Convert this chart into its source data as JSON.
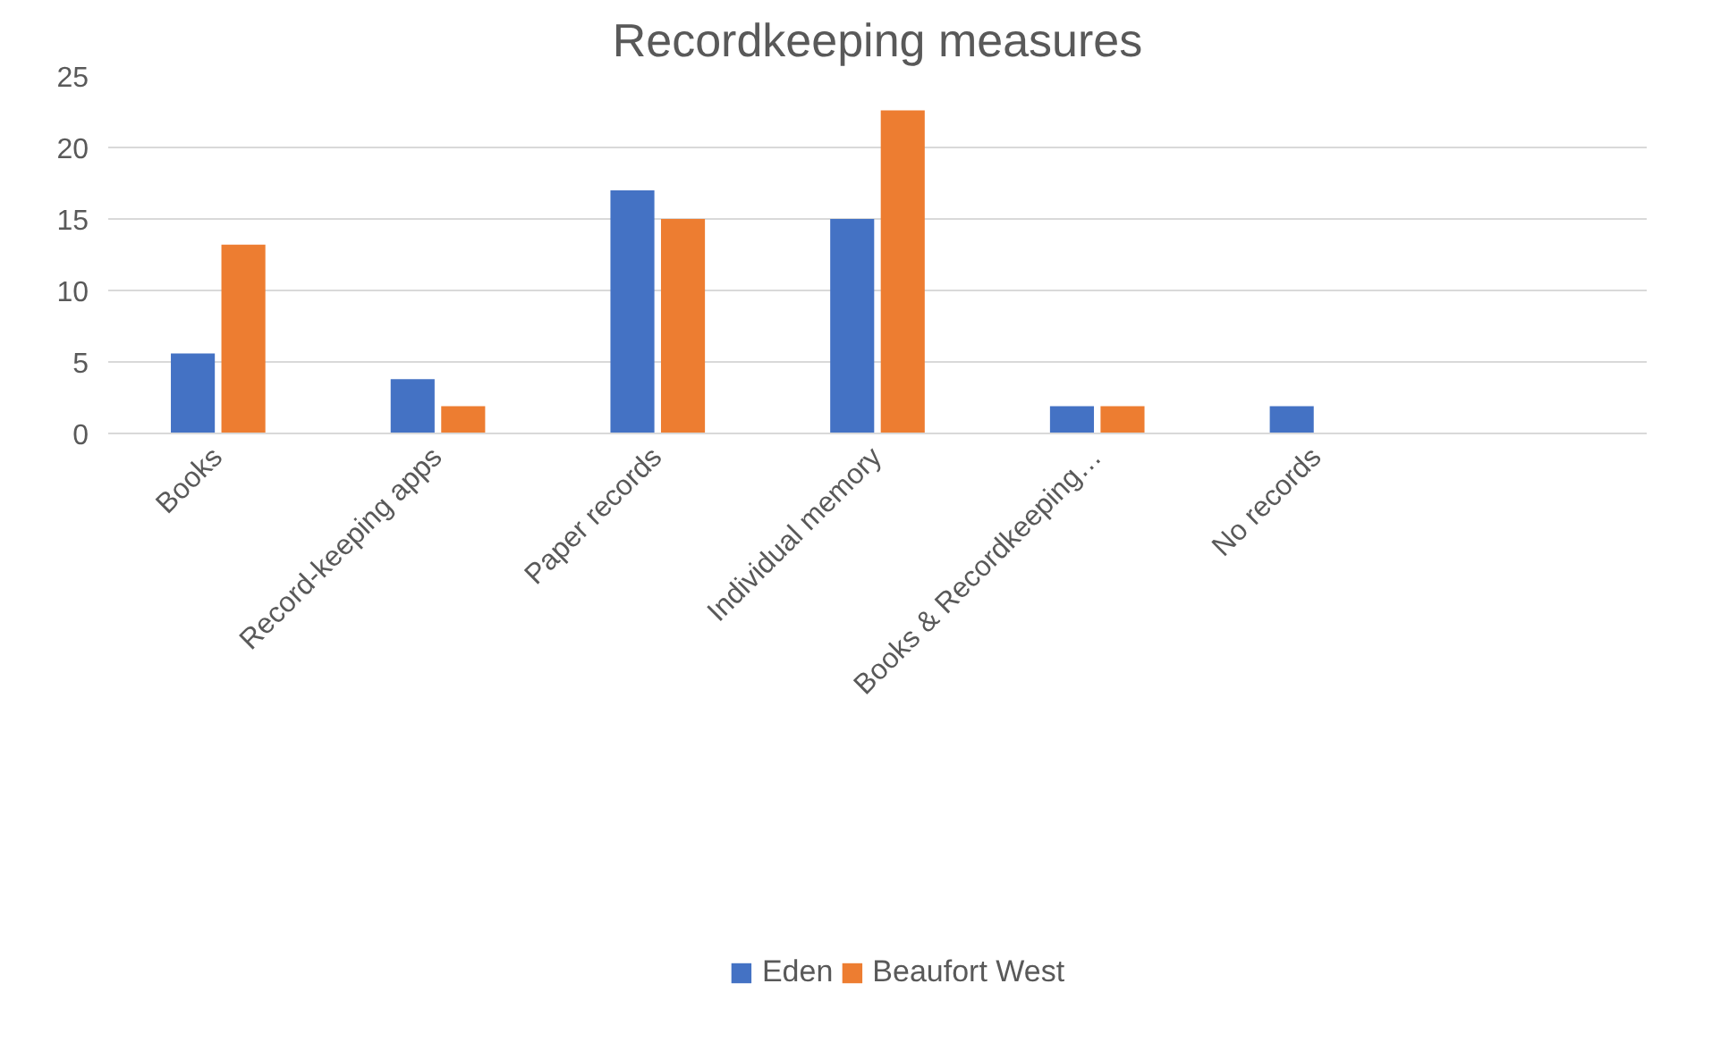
{
  "chart_data": {
    "type": "bar",
    "title": "Recordkeeping measures",
    "categories": [
      "Books",
      "Record-keeping apps",
      "Paper records",
      "Individual memory",
      "Books & Recordkeeping…",
      "No records",
      null
    ],
    "series": [
      {
        "name": "Eden",
        "color": "#4472c4",
        "values": [
          5.6,
          3.8,
          17,
          15,
          1.9,
          1.9,
          null
        ]
      },
      {
        "name": "Beaufort West",
        "color": "#ed7d31",
        "values": [
          13.2,
          1.9,
          15,
          22.6,
          1.9,
          0,
          null
        ]
      }
    ],
    "ylim": [
      0,
      25
    ],
    "yticks": [
      0,
      5,
      10,
      15,
      20,
      25
    ],
    "grid": "y",
    "legend": "bottom"
  }
}
